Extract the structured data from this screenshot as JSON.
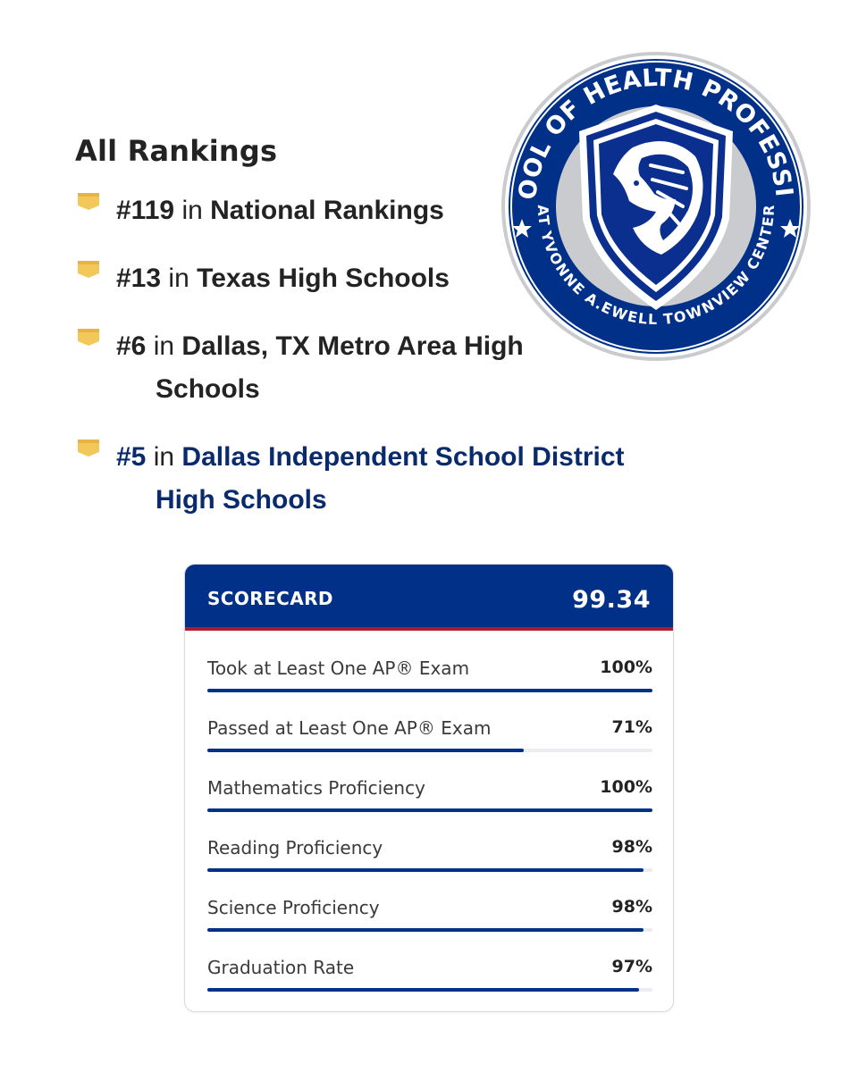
{
  "rankings": {
    "title": "All Rankings",
    "items": [
      {
        "rank": "#119",
        "connector": "in",
        "place": "National Rankings",
        "place_cont": ""
      },
      {
        "rank": "#13",
        "connector": "in",
        "place": "Texas High Schools",
        "place_cont": ""
      },
      {
        "rank": "#6",
        "connector": "in",
        "place": "Dallas, TX Metro Area High",
        "place_cont": "Schools"
      },
      {
        "rank": "#5",
        "connector": "in",
        "place": "Dallas Independent School District",
        "place_cont": "High Schools"
      }
    ]
  },
  "logo": {
    "top_arc": "SCHOOL OF HEALTH PROFESSIONS",
    "bottom_arc": "AT YVONNE A.EWELL TOWNVIEW CENTER",
    "icon": "lion-shield-crest"
  },
  "scorecard": {
    "title": "SCORECARD",
    "score": "99.34",
    "metrics": [
      {
        "label": "Took at Least One AP® Exam",
        "value": "100%",
        "fraction": 1.0
      },
      {
        "label": "Passed at Least One AP® Exam",
        "value": "71%",
        "fraction": 0.71
      },
      {
        "label": "Mathematics Proficiency",
        "value": "100%",
        "fraction": 1.0
      },
      {
        "label": "Reading Proficiency",
        "value": "98%",
        "fraction": 0.98
      },
      {
        "label": "Science Proficiency",
        "value": "98%",
        "fraction": 0.98
      },
      {
        "label": "Graduation Rate",
        "value": "97%",
        "fraction": 0.97
      }
    ]
  },
  "colors": {
    "brand_blue": "#003087",
    "accent_red": "#b01c2e",
    "link_navy": "#0a2a6e",
    "ribbon_yellow": "#f3c85a",
    "logo_gray": "#c9cbcf"
  }
}
